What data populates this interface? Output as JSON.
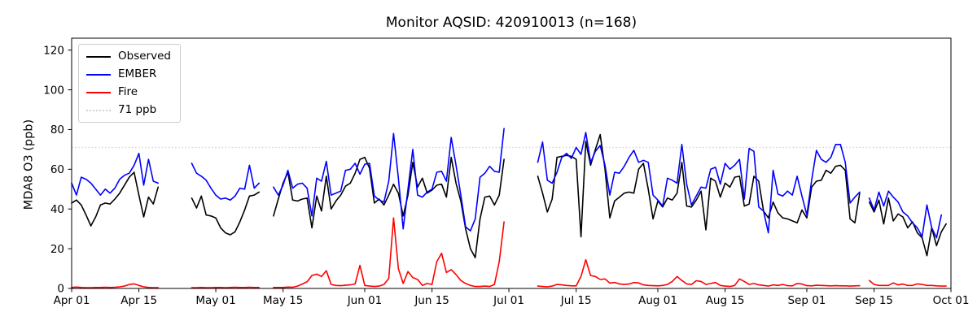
{
  "chart_data": {
    "type": "line",
    "title": "Monitor AQSID: 420910013 (n=168)",
    "ylabel": "MDA8 O3 (ppb)",
    "xlabel": "",
    "grid": false,
    "x_unit": "days since Apr 01",
    "x_range_days": [
      0,
      183
    ],
    "ylim": [
      0,
      126
    ],
    "y_ticks": [
      0,
      20,
      40,
      60,
      80,
      100,
      120
    ],
    "x_ticks": [
      {
        "day": 0,
        "label": "Apr 01"
      },
      {
        "day": 14,
        "label": "Apr 15"
      },
      {
        "day": 30,
        "label": "May 01"
      },
      {
        "day": 44,
        "label": "May 15"
      },
      {
        "day": 61,
        "label": "Jun 01"
      },
      {
        "day": 75,
        "label": "Jun 15"
      },
      {
        "day": 91,
        "label": "Jul 01"
      },
      {
        "day": 105,
        "label": "Jul 15"
      },
      {
        "day": 122,
        "label": "Aug 01"
      },
      {
        "day": 136,
        "label": "Aug 15"
      },
      {
        "day": 153,
        "label": "Sep 01"
      },
      {
        "day": 167,
        "label": "Sep 15"
      },
      {
        "day": 183,
        "label": "Oct 01"
      }
    ],
    "threshold_line": {
      "value": 71,
      "label": "71 ppb",
      "color": "#d3d3d3",
      "style": "dotted"
    },
    "legend": {
      "position": "upper left",
      "entries": [
        {
          "id": "observed",
          "label": "Observed",
          "color": "#000000",
          "style": "solid"
        },
        {
          "id": "ember",
          "label": "EMBER",
          "color": "#0000ff",
          "style": "solid"
        },
        {
          "id": "fire",
          "label": "Fire",
          "color": "#ff0000",
          "style": "solid"
        },
        {
          "id": "threshold",
          "label": "71 ppb",
          "color": "#d3d3d3",
          "style": "dotted"
        }
      ]
    },
    "series": [
      {
        "name": "Observed",
        "color": "#000000",
        "segments": [
          {
            "start_day": 0,
            "values": [
              43,
              44.5,
              42,
              37,
              31.5,
              36,
              42,
              43,
              42.5,
              45,
              48,
              52,
              56,
              58.5,
              47,
              36,
              46,
              42.5,
              51
            ]
          },
          {
            "start_day": 25,
            "values": [
              45.5,
              40.5,
              46.5,
              37,
              36.5,
              35.5,
              30.5,
              28,
              27,
              28.5,
              33.5,
              39.5,
              46.5,
              47,
              48.5
            ]
          },
          {
            "start_day": 42,
            "values": [
              36.5,
              45,
              53,
              58.5,
              44.5,
              44,
              45,
              45.5,
              30.5,
              46.5,
              39,
              56.5,
              40,
              44,
              47,
              51.5,
              53,
              58,
              65,
              66,
              60.5,
              43,
              45,
              42,
              47,
              52.5,
              48,
              36.5,
              47,
              63.5,
              51,
              55.5,
              48,
              49.5,
              52,
              52.5,
              46,
              66,
              53,
              44,
              30,
              20,
              15.5,
              35,
              46,
              46.5,
              42,
              47,
              65
            ]
          },
          {
            "start_day": 97,
            "values": [
              56.5,
              48,
              38.5,
              45,
              66,
              66.5,
              67,
              66.5,
              65,
              26,
              74,
              62,
              70,
              77.5,
              60,
              35.5,
              44,
              46,
              48,
              48.5,
              48,
              60,
              63,
              50,
              35,
              44,
              41,
              45.5,
              44.5,
              48,
              63.5,
              41.5,
              41,
              44.5,
              49,
              29.5,
              55.5,
              54,
              46,
              53,
              51,
              56,
              56.5,
              41.5,
              42.5,
              56.5,
              54,
              39,
              35.5,
              43.5,
              38,
              35.5,
              35,
              34,
              33,
              39.5,
              35.5,
              51,
              54,
              54.5,
              59.5,
              58,
              61.5,
              62,
              59.5,
              35,
              33,
              48
            ]
          },
          {
            "start_day": 166,
            "values": [
              43.5,
              38.5,
              44.5,
              32.5,
              45.5,
              34,
              37.5,
              36,
              30.5,
              33.5,
              28,
              25.5,
              16.5,
              30.5,
              21.5,
              28.5,
              32.5
            ]
          }
        ]
      },
      {
        "name": "EMBER",
        "color": "#0000ff",
        "segments": [
          {
            "start_day": 0,
            "values": [
              53,
              47,
              56,
              55,
              53,
              50,
              47,
              50,
              48,
              50.5,
              55,
              57,
              58,
              62,
              68,
              52,
              65,
              54,
              53
            ]
          },
          {
            "start_day": 25,
            "values": [
              63,
              58,
              56.5,
              54.5,
              50.5,
              47,
              45,
              45.5,
              44.5,
              46.5,
              50.5,
              50,
              62,
              50.5,
              53
            ]
          },
          {
            "start_day": 42,
            "values": [
              51,
              47,
              52,
              59.5,
              50.5,
              52.5,
              53,
              50.5,
              36.5,
              55.5,
              54,
              64,
              47,
              48,
              49,
              59.5,
              60,
              63,
              57.5,
              62.5,
              63,
              46.5,
              44.5,
              43.5,
              54,
              78,
              55.5,
              30,
              50,
              70,
              47,
              46,
              48.5,
              50,
              58.5,
              59,
              54,
              76,
              62,
              47,
              31,
              29,
              35,
              56,
              58,
              61.5,
              59,
              58.5,
              80.5
            ]
          },
          {
            "start_day": 97,
            "values": [
              63.5,
              73.7,
              54.5,
              53,
              58.5,
              66,
              68,
              65.5,
              71,
              67.5,
              78.5,
              63.5,
              69,
              72,
              62,
              47,
              58.5,
              58,
              61.5,
              66,
              69.5,
              63.5,
              64.5,
              63.5,
              47,
              44.5,
              41.5,
              55.5,
              54.5,
              53,
              72.5,
              52.5,
              42,
              46.5,
              51,
              50.5,
              60,
              61,
              52.5,
              63,
              60,
              62,
              65,
              45,
              70.5,
              69,
              41,
              39,
              28,
              59.5,
              47.5,
              46.5,
              49,
              47,
              56.5,
              46.5,
              37,
              54.5,
              69.5,
              65,
              63.5,
              66,
              72.5,
              72.5,
              63.5,
              43,
              46,
              48.5
            ]
          },
          {
            "start_day": 166,
            "values": [
              45.5,
              39.5,
              48.5,
              41.5,
              49,
              46,
              43.5,
              38.5,
              36.5,
              33,
              30.5,
              26,
              42,
              30.5,
              25.5,
              37
            ]
          }
        ]
      },
      {
        "name": "Fire",
        "color": "#ff0000",
        "segments": [
          {
            "start_day": 0,
            "values": [
              0.5,
              0.7,
              0.5,
              0.4,
              0.4,
              0.5,
              0.5,
              0.6,
              0.5,
              0.6,
              0.8,
              1.2,
              2.0,
              2.3,
              1.5,
              0.8,
              0.5,
              0.4,
              0.4
            ]
          },
          {
            "start_day": 25,
            "values": [
              0.4,
              0.4,
              0.5,
              0.4,
              0.4,
              0.5,
              0.5,
              0.4,
              0.5,
              0.6,
              0.5,
              0.5,
              0.6,
              0.5,
              0.5
            ]
          },
          {
            "start_day": 42,
            "values": [
              0.5,
              0.5,
              0.5,
              0.7,
              0.6,
              1.2,
              2.2,
              3.4,
              6.5,
              7.2,
              6,
              8.9,
              2,
              1.5,
              1.4,
              1.6,
              1.8,
              2.3,
              11.6,
              1.5,
              1.2,
              1,
              1.2,
              2,
              5,
              35.5,
              10,
              2.5,
              8.5,
              5.5,
              4.5,
              1.5,
              2.5,
              2,
              13.5,
              17.7,
              8,
              9.5,
              7,
              4,
              2.5,
              1.5,
              1,
              1,
              1.2,
              1,
              2,
              13.5,
              33.5
            ]
          },
          {
            "start_day": 97,
            "values": [
              1.2,
              1.0,
              0.8,
              1.2,
              2.0,
              1.8,
              1.5,
              1.3,
              1.3,
              6,
              14.5,
              6.5,
              6,
              4.5,
              4.8,
              2.7,
              3,
              2.3,
              2,
              2.2,
              3,
              2.8,
              1.8,
              1.5,
              1.4,
              1.3,
              1.5,
              2,
              3.5,
              6,
              4,
              2.3,
              2,
              3.9,
              3.5,
              2,
              2.5,
              3,
              1.5,
              1.2,
              1,
              1.5,
              4.8,
              3.5,
              2,
              2.5,
              1.8,
              1.5,
              1.2,
              1.8,
              1.5,
              2,
              1.4,
              1.3,
              2.5,
              2.2,
              1.4,
              1.3,
              1.6,
              1.5,
              1.4,
              1.3,
              1.4,
              1.3,
              1.3,
              1.2,
              1.3,
              1.4
            ]
          },
          {
            "start_day": 166,
            "values": [
              4,
              2,
              1.5,
              1.5,
              1.5,
              2.8,
              1.8,
              2.2,
              1.5,
              1.5,
              2.3,
              2,
              1.5,
              1.5,
              1.3,
              1.2,
              1.2
            ]
          }
        ]
      }
    ]
  }
}
